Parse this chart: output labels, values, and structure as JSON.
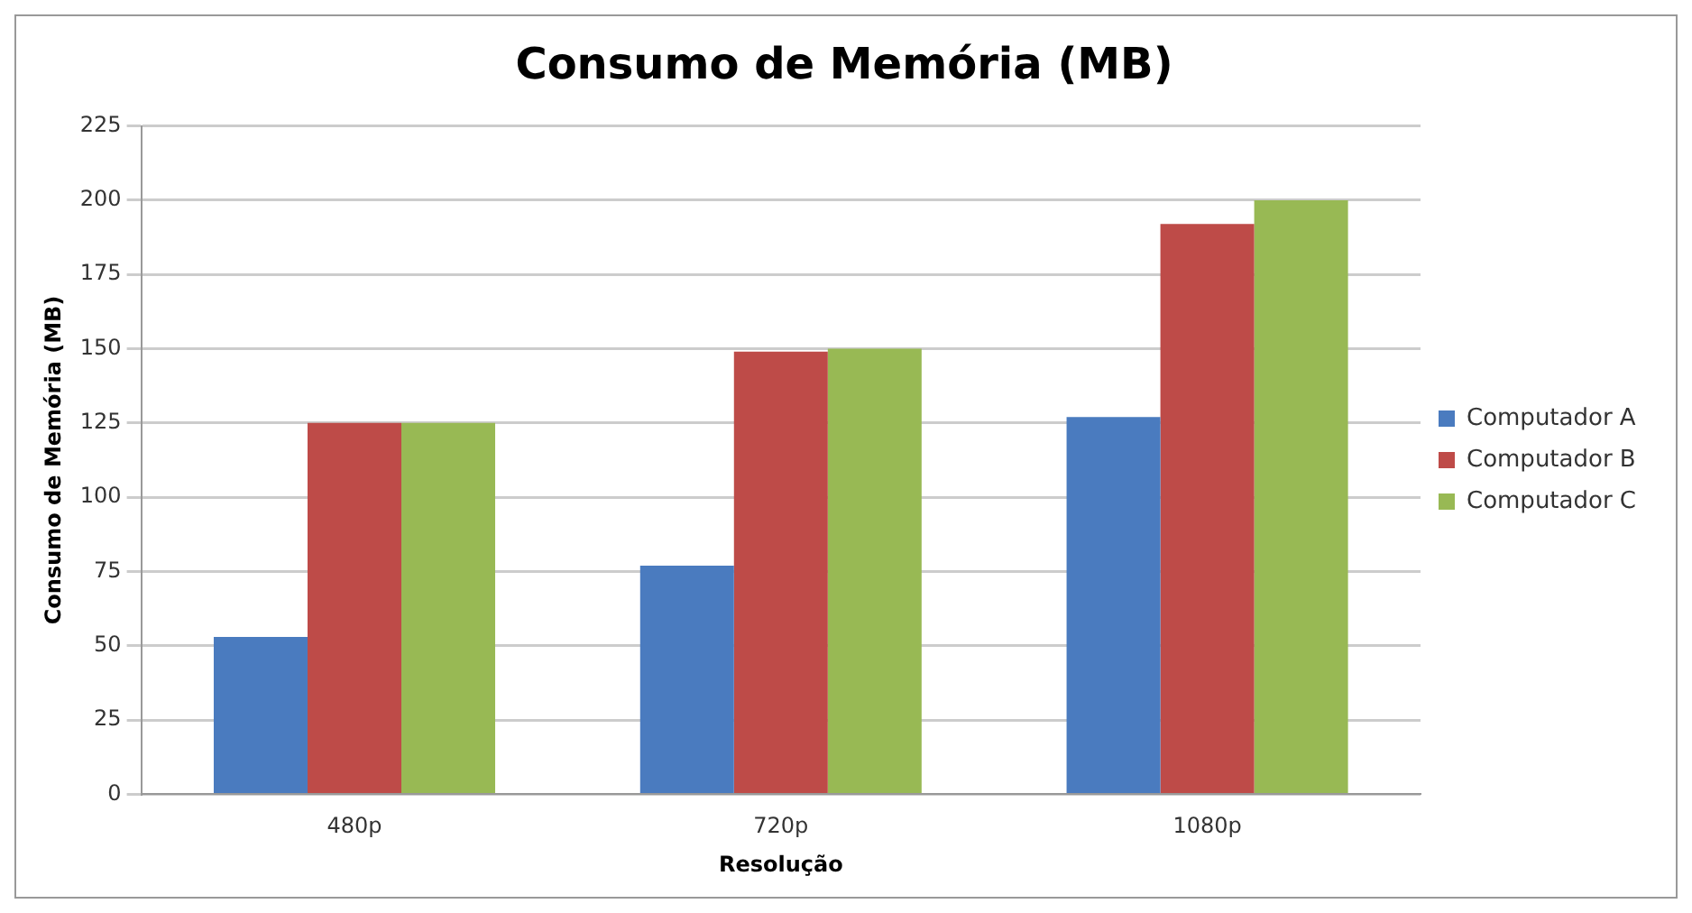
{
  "chart_data": {
    "type": "bar",
    "title": "Consumo de Memória (MB)",
    "xlabel": "Resolução",
    "ylabel": "Consumo de Memória (MB)",
    "categories": [
      "480p",
      "720p",
      "1080p"
    ],
    "series": [
      {
        "name": "Computador A",
        "color": "#4a7bbf",
        "values": [
          53,
          77,
          127
        ]
      },
      {
        "name": "Computador B",
        "color": "#be4b48",
        "values": [
          125,
          149,
          192
        ]
      },
      {
        "name": "Computador C",
        "color": "#98b954",
        "values": [
          125,
          150,
          200
        ]
      }
    ],
    "ylim": [
      0,
      225
    ],
    "yticks": [
      0,
      25,
      50,
      75,
      100,
      125,
      150,
      175,
      200,
      225
    ],
    "grid": "y",
    "legend": "right"
  }
}
